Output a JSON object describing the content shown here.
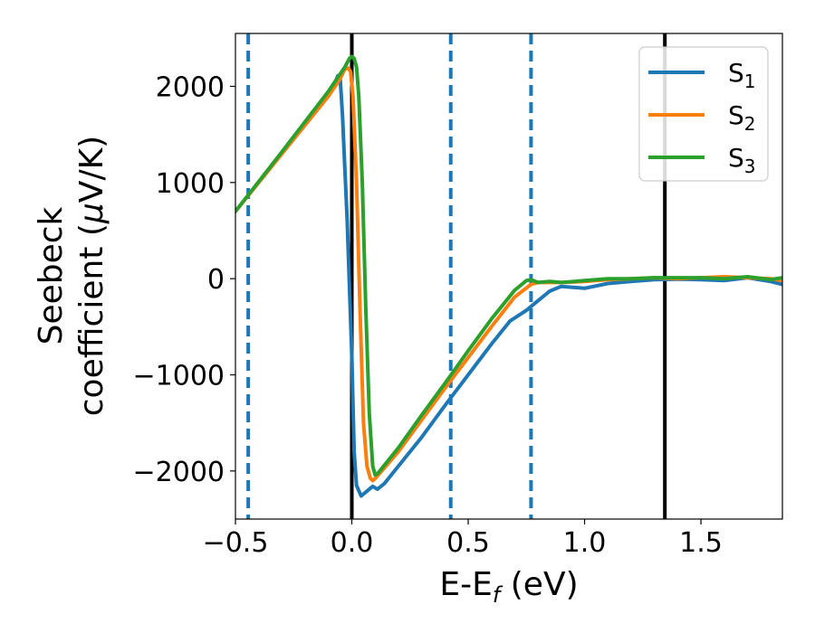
{
  "chart_data": {
    "type": "line",
    "title": "",
    "xlabel": "E-E",
    "xlabel_sub": "f",
    "xlabel_unit": " (eV)",
    "ylabel_line1": "Seebeck",
    "ylabel_line2": "coefficient  (",
    "ylabel_mu": "μ",
    "ylabel_unit": "V/K)",
    "xlim": [
      -0.5,
      1.85
    ],
    "ylim": [
      -2500,
      2550
    ],
    "xticks": [
      -0.5,
      0.0,
      0.5,
      1.0,
      1.5
    ],
    "xtick_labels": [
      "−0.5",
      "0.0",
      "0.5",
      "1.0",
      "1.5"
    ],
    "yticks": [
      -2000,
      -1000,
      0,
      1000,
      2000
    ],
    "ytick_labels": [
      "−2000",
      "−1000",
      "0",
      "1000",
      "2000"
    ],
    "legend_position": "top-right",
    "vlines_solid": [
      0.0,
      1.345
    ],
    "vlines_dashed": [
      -0.445,
      0.425,
      0.77
    ],
    "series": [
      {
        "name": "S",
        "name_sub": "1",
        "color": "#1f77b4",
        "points": [
          [
            -0.5,
            700
          ],
          [
            -0.3,
            1300
          ],
          [
            -0.1,
            1900
          ],
          [
            -0.07,
            2050
          ],
          [
            -0.06,
            2110
          ],
          [
            -0.05,
            2080
          ],
          [
            -0.04,
            1700
          ],
          [
            -0.02,
            600
          ],
          [
            0.0,
            -800
          ],
          [
            0.01,
            -1800
          ],
          [
            0.02,
            -2150
          ],
          [
            0.04,
            -2260
          ],
          [
            0.07,
            -2200
          ],
          [
            0.09,
            -2160
          ],
          [
            0.11,
            -2190
          ],
          [
            0.14,
            -2130
          ],
          [
            0.2,
            -1950
          ],
          [
            0.3,
            -1650
          ],
          [
            0.4,
            -1320
          ],
          [
            0.5,
            -1000
          ],
          [
            0.6,
            -680
          ],
          [
            0.68,
            -440
          ],
          [
            0.75,
            -330
          ],
          [
            0.8,
            -230
          ],
          [
            0.85,
            -130
          ],
          [
            0.9,
            -80
          ],
          [
            0.95,
            -90
          ],
          [
            1.0,
            -100
          ],
          [
            1.1,
            -50
          ],
          [
            1.2,
            -30
          ],
          [
            1.3,
            -10
          ],
          [
            1.4,
            -5
          ],
          [
            1.5,
            -10
          ],
          [
            1.6,
            -20
          ],
          [
            1.7,
            10
          ],
          [
            1.8,
            -30
          ],
          [
            1.85,
            -60
          ]
        ]
      },
      {
        "name": "S",
        "name_sub": "2",
        "color": "#ff7f0e",
        "points": [
          [
            -0.5,
            700
          ],
          [
            -0.3,
            1300
          ],
          [
            -0.1,
            1900
          ],
          [
            -0.05,
            2080
          ],
          [
            -0.03,
            2180
          ],
          [
            -0.015,
            2190
          ],
          [
            -0.005,
            2150
          ],
          [
            0.005,
            1900
          ],
          [
            0.02,
            1000
          ],
          [
            0.035,
            -300
          ],
          [
            0.05,
            -1500
          ],
          [
            0.065,
            -1950
          ],
          [
            0.08,
            -2080
          ],
          [
            0.09,
            -2100
          ],
          [
            0.1,
            -2080
          ],
          [
            0.2,
            -1800
          ],
          [
            0.3,
            -1470
          ],
          [
            0.4,
            -1140
          ],
          [
            0.5,
            -820
          ],
          [
            0.6,
            -500
          ],
          [
            0.7,
            -190
          ],
          [
            0.77,
            -60
          ],
          [
            0.8,
            -40
          ],
          [
            0.9,
            -40
          ],
          [
            1.0,
            -30
          ],
          [
            1.1,
            -10
          ],
          [
            1.2,
            0
          ],
          [
            1.3,
            10
          ],
          [
            1.4,
            0
          ],
          [
            1.5,
            10
          ],
          [
            1.6,
            20
          ],
          [
            1.7,
            10
          ],
          [
            1.8,
            0
          ],
          [
            1.85,
            -20
          ]
        ]
      },
      {
        "name": "S",
        "name_sub": "3",
        "color": "#2ca02c",
        "points": [
          [
            -0.5,
            700
          ],
          [
            -0.3,
            1320
          ],
          [
            -0.1,
            1950
          ],
          [
            -0.03,
            2200
          ],
          [
            -0.01,
            2290
          ],
          [
            0.0,
            2310
          ],
          [
            0.01,
            2290
          ],
          [
            0.02,
            2200
          ],
          [
            0.03,
            1900
          ],
          [
            0.045,
            1000
          ],
          [
            0.06,
            -300
          ],
          [
            0.075,
            -1400
          ],
          [
            0.09,
            -1950
          ],
          [
            0.1,
            -2040
          ],
          [
            0.11,
            -2030
          ],
          [
            0.2,
            -1760
          ],
          [
            0.3,
            -1420
          ],
          [
            0.4,
            -1090
          ],
          [
            0.5,
            -750
          ],
          [
            0.6,
            -420
          ],
          [
            0.7,
            -120
          ],
          [
            0.75,
            -20
          ],
          [
            0.77,
            -10
          ],
          [
            0.8,
            -40
          ],
          [
            0.85,
            -30
          ],
          [
            0.9,
            -40
          ],
          [
            1.0,
            -20
          ],
          [
            1.1,
            0
          ],
          [
            1.2,
            0
          ],
          [
            1.3,
            10
          ],
          [
            1.4,
            10
          ],
          [
            1.5,
            10
          ],
          [
            1.6,
            0
          ],
          [
            1.7,
            20
          ],
          [
            1.8,
            -10
          ],
          [
            1.85,
            10
          ]
        ]
      }
    ]
  }
}
